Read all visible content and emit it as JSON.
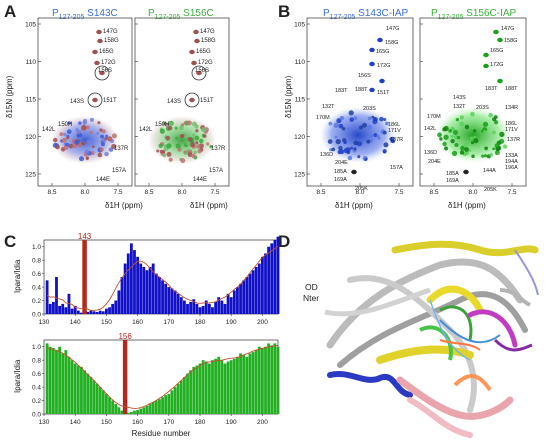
{
  "panels": {
    "A": {
      "letter": "A",
      "left_title_sub": "127-205",
      "left_title_mut": "S143C",
      "right_title_sub": "127-205",
      "right_title_mut": "S156C",
      "y_axis_label": "δ15N (ppm)",
      "x_axis_label": "δ1H (ppm)",
      "y_ticks": [
        "105",
        "110",
        "115",
        "120",
        "125"
      ],
      "x_ticks": [
        "8.5",
        "8.0",
        "7.5"
      ],
      "peak_labels": [
        "147G",
        "158G",
        "165G",
        "172G",
        "156S",
        "143S",
        "151T",
        "142L",
        "150H",
        "137R",
        "157A",
        "144E"
      ]
    },
    "B": {
      "letter": "B",
      "left_title_sub": "127-205",
      "left_title_mut": "S143C-IAP",
      "right_title_sub": "127-205",
      "right_title_mut": "S156C-IAP",
      "y_axis_label": "δ15N (ppm)",
      "x_axis_label": "δ1H (ppm)",
      "y_ticks": [
        "105",
        "110",
        "115",
        "120",
        "125"
      ],
      "x_ticks": [
        "8.5",
        "8.0",
        "7.5"
      ],
      "left_peak_labels": [
        "147G",
        "158G",
        "165G",
        "172G",
        "156S",
        "183T",
        "188T",
        "151T",
        "203S",
        "132T",
        "170M",
        "186L",
        "171V",
        "137R",
        "136D",
        "204E",
        "157A",
        "185A",
        "169A",
        "205K"
      ],
      "right_peak_labels": [
        "147G",
        "158G",
        "165G",
        "172G",
        "188T",
        "183T",
        "143S",
        "132T",
        "203S",
        "134R",
        "142L",
        "170M",
        "186L",
        "171V",
        "137R",
        "136D",
        "133A",
        "194A",
        "196A",
        "204E",
        "144A",
        "185A",
        "169A",
        "205K"
      ]
    },
    "C": {
      "letter": "C",
      "y_axis_label": "Ipara/Idia",
      "x_axis_label": "Residue number",
      "x_ticks": [
        "130",
        "140",
        "150",
        "160",
        "170",
        "180",
        "190",
        "200"
      ],
      "y_ticks": [
        "0.0",
        "0.2",
        "0.4",
        "0.6",
        "0.8",
        "1.0"
      ]
    },
    "D": {
      "letter": "D",
      "label_line1": "OD",
      "label_line2": "Nter"
    }
  },
  "colors": {
    "blue_bars": "#1010c8",
    "green_bars": "#22b022",
    "marker_red": "#b0281e",
    "curve": "#c0502a"
  },
  "chart_data": [
    {
      "type": "bar",
      "series_marker": "143",
      "x": [
        131,
        132,
        133,
        134,
        135,
        136,
        137,
        138,
        139,
        140,
        141,
        142,
        144,
        145,
        146,
        147,
        148,
        149,
        150,
        151,
        152,
        153,
        154,
        155,
        156,
        157,
        158,
        159,
        160,
        161,
        162,
        163,
        164,
        165,
        166,
        167,
        168,
        169,
        170,
        171,
        172,
        173,
        174,
        175,
        176,
        177,
        178,
        179,
        180,
        181,
        182,
        183,
        184,
        185,
        186,
        187,
        188,
        189,
        190,
        191,
        192,
        193,
        194,
        195,
        196,
        197,
        198,
        199,
        200,
        201,
        202,
        203,
        204,
        205
      ],
      "values": [
        0.5,
        0.15,
        0.18,
        0.55,
        0.12,
        0.15,
        0.1,
        0.3,
        0.08,
        0.12,
        0.05,
        0.02,
        0.03,
        0.05,
        0.04,
        0.03,
        0.05,
        0.04,
        0.08,
        0.1,
        0.15,
        0.2,
        0.35,
        0.55,
        0.75,
        0.9,
        1.05,
        0.95,
        0.85,
        0.75,
        0.7,
        0.65,
        0.7,
        0.75,
        0.6,
        0.55,
        0.5,
        0.45,
        0.4,
        0.38,
        0.35,
        0.3,
        0.25,
        0.2,
        0.15,
        0.18,
        0.22,
        0.15,
        0.1,
        0.12,
        0.2,
        0.15,
        0.1,
        0.18,
        0.25,
        0.2,
        0.15,
        0.3,
        0.25,
        0.35,
        0.4,
        0.45,
        0.5,
        0.55,
        0.6,
        0.65,
        0.7,
        0.75,
        0.85,
        0.9,
        1.0,
        1.05,
        1.1,
        1.15
      ],
      "xlim": [
        130,
        205
      ],
      "ylim": [
        0,
        1.1
      ],
      "xlabel": "",
      "ylabel": "Ipara/Idia"
    },
    {
      "type": "bar",
      "series_marker": "156",
      "x": [
        131,
        132,
        133,
        134,
        135,
        136,
        137,
        138,
        139,
        140,
        141,
        142,
        143,
        144,
        145,
        146,
        147,
        148,
        149,
        150,
        151,
        152,
        153,
        154,
        155,
        157,
        158,
        159,
        160,
        161,
        162,
        163,
        164,
        165,
        166,
        167,
        168,
        169,
        170,
        171,
        172,
        173,
        174,
        175,
        176,
        177,
        178,
        179,
        180,
        181,
        182,
        183,
        184,
        185,
        186,
        187,
        188,
        189,
        190,
        191,
        192,
        193,
        194,
        195,
        196,
        197,
        198,
        199,
        200,
        201,
        202,
        203,
        204,
        205
      ],
      "values": [
        1.05,
        1.0,
        0.98,
        0.95,
        1.0,
        0.9,
        0.95,
        0.85,
        0.8,
        0.75,
        0.72,
        0.7,
        0.65,
        0.6,
        0.55,
        0.5,
        0.45,
        0.4,
        0.35,
        0.3,
        0.25,
        0.2,
        0.15,
        0.1,
        0.05,
        0.02,
        0.03,
        0.05,
        0.06,
        0.08,
        0.1,
        0.12,
        0.15,
        0.18,
        0.2,
        0.22,
        0.25,
        0.28,
        0.3,
        0.35,
        0.4,
        0.45,
        0.5,
        0.55,
        0.6,
        0.65,
        0.7,
        0.72,
        0.75,
        0.8,
        0.78,
        0.75,
        0.8,
        0.82,
        0.85,
        0.8,
        0.75,
        0.78,
        0.8,
        0.82,
        0.85,
        0.9,
        0.88,
        0.85,
        0.9,
        0.92,
        0.95,
        1.0,
        0.98,
        1.0,
        1.05,
        1.02,
        1.05,
        1.0
      ],
      "xlim": [
        130,
        205
      ],
      "ylim": [
        0,
        1.1
      ],
      "xlabel": "Residue number",
      "ylabel": "Ipara/Idia"
    }
  ]
}
